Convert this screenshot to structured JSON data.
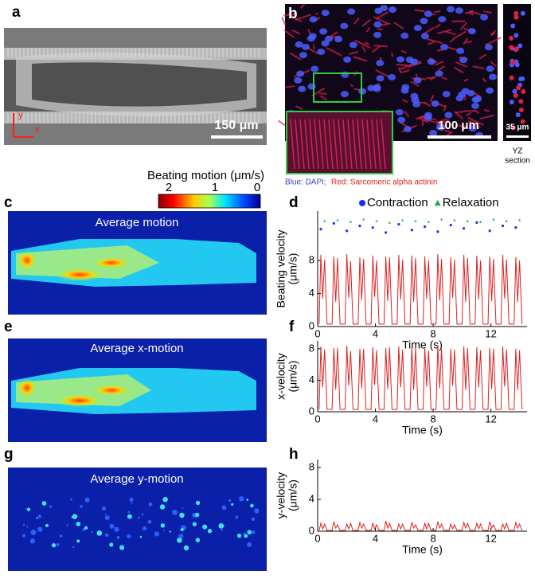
{
  "panels": {
    "a": "a",
    "b": "b",
    "c": "c",
    "d": "d",
    "e": "e",
    "f": "f",
    "g": "g",
    "h": "h"
  },
  "images": {
    "a_scale": "150 μm",
    "a_axis_x": "x",
    "a_axis_y": "y",
    "b_scale": "100 μm",
    "b_side_scale": "35 μm",
    "b_side_label": [
      "YZ",
      "section"
    ],
    "b_caption_blue": "Blue: DAPI;",
    "b_caption_red": "Red: Sarcomeric alpha actinin",
    "c_label": "Average motion",
    "e_label": "Average x-motion",
    "g_label": "Average y-motion"
  },
  "colorbar": {
    "title": "Beating motion (μm/s)",
    "ticks": [
      2,
      1,
      0
    ]
  },
  "chart_data": [
    {
      "type": "line",
      "xlabel": "Time (s)",
      "ylabel": [
        "Beating velocity",
        "(μm/s)"
      ],
      "xlim": [
        0,
        14.5
      ],
      "ylim": [
        0,
        14
      ],
      "xticks": [
        0,
        4,
        8,
        12
      ],
      "yticks": [
        0,
        4,
        8
      ],
      "series": [
        {
          "color": "#e02020",
          "x": [
            0.1,
            0.22,
            0.35,
            0.48,
            0.65,
            1.0,
            1.12,
            1.25,
            1.38,
            1.55,
            1.9,
            2.02,
            2.15,
            2.28,
            2.45,
            2.8,
            2.92,
            3.05,
            3.18,
            3.35,
            3.7,
            3.82,
            3.95,
            4.08,
            4.25,
            4.6,
            4.72,
            4.85,
            4.98,
            5.15,
            5.5,
            5.62,
            5.75,
            5.88,
            6.05,
            6.4,
            6.52,
            6.65,
            6.78,
            6.95,
            7.3,
            7.42,
            7.55,
            7.68,
            7.85,
            8.2,
            8.32,
            8.45,
            8.58,
            8.75,
            9.1,
            9.22,
            9.35,
            9.48,
            9.65,
            10.0,
            10.12,
            10.25,
            10.38,
            10.55,
            10.9,
            11.02,
            11.15,
            11.28,
            11.45,
            11.8,
            11.92,
            12.05,
            12.18,
            12.35,
            12.7,
            12.82,
            12.95,
            13.08,
            13.25,
            13.6,
            13.72,
            13.85,
            13.98,
            14.15
          ],
          "values": [
            0.3,
            8.7,
            3.4,
            8.1,
            0.3,
            0.3,
            8.5,
            3.0,
            8.3,
            0.3,
            0.3,
            8.8,
            3.5,
            7.9,
            0.3,
            0.3,
            8.4,
            3.2,
            8.2,
            0.3,
            0.3,
            8.6,
            3.6,
            8.0,
            0.3,
            0.3,
            8.5,
            3.1,
            8.4,
            0.3,
            0.3,
            8.7,
            3.3,
            8.1,
            0.3,
            0.3,
            8.6,
            3.0,
            8.3,
            0.3,
            0.3,
            8.5,
            3.4,
            8.0,
            0.3,
            0.3,
            8.8,
            3.2,
            8.2,
            0.3,
            0.3,
            8.4,
            3.5,
            8.1,
            0.3,
            0.3,
            8.7,
            3.0,
            8.3,
            0.3,
            0.3,
            8.6,
            3.3,
            8.0,
            0.3,
            0.3,
            8.5,
            3.1,
            8.2,
            0.3,
            0.3,
            8.7,
            3.4,
            8.1,
            0.3,
            0.3,
            8.4,
            3.0,
            8.0,
            0.3
          ]
        },
        {
          "name": "Contraction",
          "color": "#1a2cff",
          "marker": "circle",
          "x": [
            0.22,
            1.12,
            2.02,
            2.92,
            3.82,
            4.72,
            5.62,
            6.52,
            7.42,
            8.32,
            9.22,
            10.12,
            11.02,
            11.92,
            12.82,
            13.72
          ],
          "values": [
            11.8,
            12.5,
            11.6,
            12.2,
            12.0,
            11.4,
            12.4,
            11.7,
            12.1,
            11.5,
            12.3,
            11.9,
            12.6,
            11.6,
            12.2,
            12.0
          ]
        },
        {
          "name": "Relaxation",
          "color": "#1fa84a",
          "marker": "triangle",
          "x": [
            0.48,
            1.38,
            2.28,
            3.18,
            4.08,
            4.98,
            5.88,
            6.78,
            7.68,
            8.58,
            9.48,
            10.38,
            11.28,
            12.18,
            13.08,
            13.98
          ],
          "values": [
            12.8,
            12.9,
            12.7,
            13.0,
            12.8,
            12.6,
            12.9,
            12.8,
            12.7,
            13.0,
            12.9,
            12.8,
            12.7,
            13.0,
            12.8,
            12.9
          ]
        }
      ]
    },
    {
      "type": "line",
      "xlabel": "Time (s)",
      "ylabel": [
        "x-velocity",
        "(μm/s)"
      ],
      "xlim": [
        0,
        14.5
      ],
      "ylim": [
        0,
        9
      ],
      "xticks": [
        0,
        4,
        8,
        12
      ],
      "yticks": [
        0,
        4,
        8
      ],
      "series": [
        {
          "color": "#e02020",
          "x": [
            0.1,
            0.22,
            0.35,
            0.48,
            0.65,
            1.0,
            1.12,
            1.25,
            1.38,
            1.55,
            1.9,
            2.02,
            2.15,
            2.28,
            2.45,
            2.8,
            2.92,
            3.05,
            3.18,
            3.35,
            3.7,
            3.82,
            3.95,
            4.08,
            4.25,
            4.6,
            4.72,
            4.85,
            4.98,
            5.15,
            5.5,
            5.62,
            5.75,
            5.88,
            6.05,
            6.4,
            6.52,
            6.65,
            6.78,
            6.95,
            7.3,
            7.42,
            7.55,
            7.68,
            7.85,
            8.2,
            8.32,
            8.45,
            8.58,
            8.75,
            9.1,
            9.22,
            9.35,
            9.48,
            9.65,
            10.0,
            10.12,
            10.25,
            10.38,
            10.55,
            10.9,
            11.02,
            11.15,
            11.28,
            11.45,
            11.8,
            11.92,
            12.05,
            12.18,
            12.35,
            12.7,
            12.82,
            12.95,
            13.08,
            13.25,
            13.6,
            13.72,
            13.85,
            13.98,
            14.15
          ],
          "values": [
            0.3,
            8.3,
            3.1,
            7.9,
            0.3,
            0.3,
            8.1,
            2.8,
            8.1,
            0.3,
            0.3,
            8.4,
            3.3,
            7.7,
            0.3,
            0.3,
            8.0,
            3.0,
            8.0,
            0.3,
            0.3,
            8.2,
            3.4,
            7.8,
            0.3,
            0.3,
            8.1,
            2.9,
            8.2,
            0.3,
            0.3,
            8.3,
            3.1,
            7.9,
            0.3,
            0.3,
            8.2,
            2.8,
            8.1,
            0.3,
            0.3,
            8.1,
            3.2,
            7.8,
            0.3,
            0.3,
            8.4,
            3.0,
            8.0,
            0.3,
            0.3,
            8.0,
            3.3,
            7.9,
            0.3,
            0.3,
            8.3,
            2.8,
            8.1,
            0.3,
            0.3,
            8.2,
            3.1,
            7.8,
            0.3,
            0.3,
            8.1,
            2.9,
            8.0,
            0.3,
            0.3,
            8.3,
            3.2,
            7.9,
            0.3,
            0.3,
            8.0,
            2.8,
            7.8,
            0.3
          ]
        }
      ]
    },
    {
      "type": "line",
      "xlabel": "Time (s)",
      "ylabel": [
        "y-velocity",
        "(μm/s)"
      ],
      "xlim": [
        0,
        14.5
      ],
      "ylim": [
        0,
        9
      ],
      "xticks": [
        0,
        4,
        8,
        12
      ],
      "yticks": [
        0,
        4,
        8
      ],
      "series": [
        {
          "color": "#e02020",
          "x": [
            0.1,
            0.22,
            0.35,
            0.48,
            0.65,
            1.0,
            1.12,
            1.25,
            1.38,
            1.55,
            1.9,
            2.02,
            2.15,
            2.28,
            2.45,
            2.8,
            2.92,
            3.05,
            3.18,
            3.35,
            3.7,
            3.82,
            3.95,
            4.08,
            4.25,
            4.6,
            4.72,
            4.85,
            4.98,
            5.15,
            5.5,
            5.62,
            5.75,
            5.88,
            6.05,
            6.4,
            6.52,
            6.65,
            6.78,
            6.95,
            7.3,
            7.42,
            7.55,
            7.68,
            7.85,
            8.2,
            8.32,
            8.45,
            8.58,
            8.75,
            9.1,
            9.22,
            9.35,
            9.48,
            9.65,
            10.0,
            10.12,
            10.25,
            10.38,
            10.55,
            10.9,
            11.02,
            11.15,
            11.28,
            11.45,
            11.8,
            11.92,
            12.05,
            12.18,
            12.35,
            12.7,
            12.82,
            12.95,
            13.08,
            13.25,
            13.6,
            13.72,
            13.85,
            13.98,
            14.15
          ],
          "values": [
            0.1,
            1.0,
            0.3,
            0.9,
            0.1,
            0.1,
            1.2,
            0.4,
            0.8,
            0.1,
            0.1,
            0.9,
            0.3,
            1.0,
            0.1,
            0.1,
            1.1,
            0.4,
            0.9,
            0.1,
            0.1,
            1.0,
            0.3,
            0.8,
            0.1,
            0.1,
            1.3,
            0.4,
            1.0,
            0.1,
            0.1,
            0.9,
            0.3,
            0.9,
            0.1,
            0.1,
            1.1,
            0.4,
            0.8,
            0.1,
            0.1,
            1.0,
            0.3,
            1.0,
            0.1,
            0.1,
            1.2,
            0.4,
            0.9,
            0.1,
            0.1,
            0.9,
            0.3,
            0.8,
            0.1,
            0.1,
            1.1,
            0.4,
            1.0,
            0.1,
            0.1,
            1.0,
            0.3,
            0.9,
            0.1,
            0.1,
            1.2,
            0.4,
            0.8,
            0.1,
            0.1,
            0.9,
            0.3,
            1.0,
            0.1,
            0.1,
            1.1,
            0.4,
            0.9,
            0.1
          ]
        }
      ]
    }
  ]
}
